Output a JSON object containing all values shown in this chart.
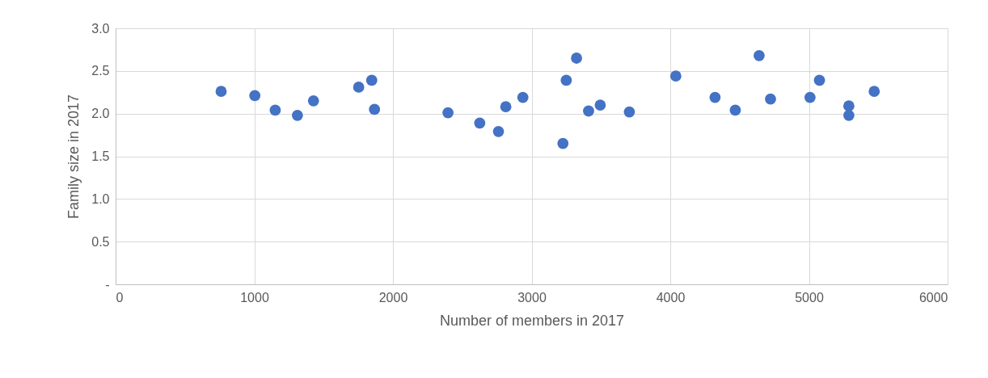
{
  "chart_data": {
    "type": "scatter",
    "xlabel": "Number of members in 2017",
    "ylabel": "Family size in 2017",
    "x": [
      761,
      1004,
      1151,
      1311,
      1427,
      1753,
      1847,
      1867,
      2397,
      2626,
      2761,
      2814,
      2937,
      3226,
      3250,
      3324,
      3411,
      3495,
      3705,
      4040,
      4323,
      4469,
      4641,
      4723,
      5008,
      5076,
      5288,
      5288,
      5471
    ],
    "series": [
      {
        "color": "#4472c4",
        "values": [
          2.26,
          2.21,
          2.04,
          1.98,
          2.15,
          2.31,
          2.39,
          2.05,
          2.01,
          1.89,
          1.79,
          2.08,
          2.19,
          1.65,
          2.39,
          2.65,
          2.03,
          2.1,
          2.02,
          2.44,
          2.19,
          2.04,
          2.68,
          2.17,
          2.19,
          2.39,
          2.09,
          1.98,
          2.26
        ]
      }
    ],
    "xlim": [
      0,
      6000
    ],
    "xticks": [
      0,
      1000,
      2000,
      3000,
      4000,
      5000,
      6000
    ],
    "ylim": [
      0,
      3
    ],
    "yticks": [
      {
        "value": 0,
        "label": "-"
      },
      {
        "value": 0.5,
        "label": "0.5"
      },
      {
        "value": 1,
        "label": "1.0"
      },
      {
        "value": 1.5,
        "label": "1.5"
      },
      {
        "value": 2,
        "label": "2.0"
      },
      {
        "value": 2.5,
        "label": "2.5"
      },
      {
        "value": 3,
        "label": "3.0"
      }
    ],
    "grid": true,
    "marker": "circle"
  }
}
